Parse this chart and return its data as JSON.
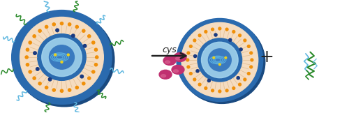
{
  "background_color": "#ffffff",
  "figsize": [
    5.0,
    1.62
  ],
  "dpi": 100,
  "blue_sphere": "#2a6aae",
  "blue_sphere_light": "#4a8fcc",
  "blue_sphere_dark": "#1a4a80",
  "orange_dot": "#f0900a",
  "navy_dot": "#1a3a80",
  "peach_membrane": "#f5dcc0",
  "peach_membrane_dark": "#e8c090",
  "center_glow": "#a8d8f0",
  "center_blue": "#3a7abf",
  "magenta_ball": "#c03070",
  "magenta_ball_light": "#d86090",
  "green_peg": "#2a8a2a",
  "light_blue_peg": "#60b8e0",
  "arrow_color": "#222222",
  "text_color": "#222222",
  "yellow_dot": "#e8d020"
}
